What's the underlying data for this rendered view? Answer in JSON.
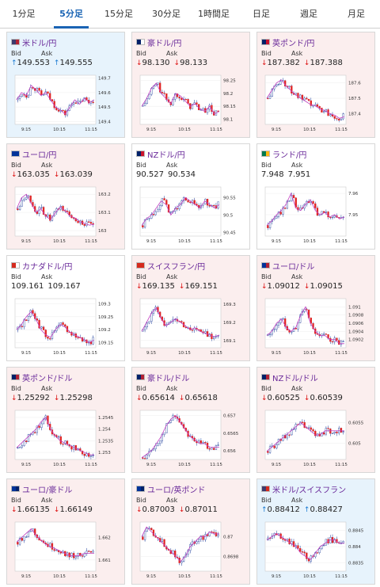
{
  "tabs": [
    {
      "label": "1分足",
      "active": false
    },
    {
      "label": "5分足",
      "active": true
    },
    {
      "label": "15分足",
      "active": false
    },
    {
      "label": "30分足",
      "active": false
    },
    {
      "label": "1時間足",
      "active": false
    },
    {
      "label": "日足",
      "active": false
    },
    {
      "label": "週足",
      "active": false
    },
    {
      "label": "月足",
      "active": false
    }
  ],
  "colors": {
    "up_candle": "#ffffff",
    "down_candle": "#e02424",
    "up_outline": "#1a3a9a",
    "ma_line": "#c040c0",
    "accent": "#1a64b4"
  },
  "cards": [
    {
      "pair": "米ドル/円",
      "flag_a": "#3c3b6e",
      "flag_b": "#b22234",
      "bid_label": "Bid",
      "ask_label": "Ask",
      "bid": "149.553",
      "ask": "149.555",
      "dir": "up",
      "bg": "up",
      "chart_data": {
        "type": "candlestick",
        "yticks": [
          "149.7",
          "149.6",
          "149.5",
          "149.4"
        ],
        "xticks": [
          "9:15",
          "10:15",
          "11:15"
        ],
        "ylim": [
          149.38,
          149.72
        ],
        "trend": [
          149.55,
          149.6,
          149.58,
          149.65,
          149.62,
          149.58,
          149.6,
          149.55,
          149.5,
          149.48,
          149.45,
          149.5,
          149.55,
          149.52,
          149.56,
          149.53,
          149.55
        ]
      }
    },
    {
      "pair": "豪ドル/円",
      "flag_a": "#012169",
      "flag_b": "#ffffff",
      "bid_label": "Bid",
      "ask_label": "Ask",
      "bid": "98.130",
      "ask": "98.133",
      "dir": "down",
      "bg": "down",
      "chart_data": {
        "type": "candlestick",
        "yticks": [
          "98.25",
          "98.2",
          "98.15",
          "98.1"
        ],
        "xticks": [
          "9:15",
          "10:15",
          "11:15"
        ],
        "ylim": [
          98.08,
          98.27
        ],
        "trend": [
          98.15,
          98.18,
          98.22,
          98.24,
          98.2,
          98.18,
          98.16,
          98.2,
          98.19,
          98.17,
          98.15,
          98.16,
          98.14,
          98.13,
          98.15,
          98.12,
          98.13
        ]
      }
    },
    {
      "pair": "英ポンド/円",
      "flag_a": "#012169",
      "flag_b": "#c8102e",
      "bid_label": "Bid",
      "ask_label": "Ask",
      "bid": "187.382",
      "ask": "187.388",
      "dir": "down",
      "bg": "down",
      "chart_data": {
        "type": "candlestick",
        "yticks": [
          "187.6",
          "187.5",
          "187.4"
        ],
        "xticks": [
          "9:15",
          "10:15",
          "11:15"
        ],
        "ylim": [
          187.33,
          187.65
        ],
        "trend": [
          187.5,
          187.55,
          187.6,
          187.62,
          187.58,
          187.55,
          187.52,
          187.5,
          187.48,
          187.46,
          187.45,
          187.43,
          187.42,
          187.4,
          187.39,
          187.37,
          187.38
        ]
      }
    },
    {
      "pair": "ユーロ/円",
      "flag_a": "#003399",
      "flag_b": "#003399",
      "bid_label": "Bid",
      "ask_label": "Ask",
      "bid": "163.035",
      "ask": "163.039",
      "dir": "down",
      "bg": "down",
      "chart_data": {
        "type": "candlestick",
        "yticks": [
          "163.2",
          "163.1",
          "163"
        ],
        "xticks": [
          "9:15",
          "10:15",
          "11:15"
        ],
        "ylim": [
          162.97,
          163.24
        ],
        "trend": [
          163.12,
          163.18,
          163.2,
          163.15,
          163.1,
          163.12,
          163.08,
          163.06,
          163.1,
          163.13,
          163.11,
          163.08,
          163.07,
          163.05,
          163.04,
          163.03,
          163.035
        ]
      }
    },
    {
      "pair": "NZドル/円",
      "flag_a": "#012169",
      "flag_b": "#cc142b",
      "bid_label": "Bid",
      "ask_label": "Ask",
      "bid": "90.527",
      "ask": "90.534",
      "dir": "none",
      "bg": "flat",
      "chart_data": {
        "type": "candlestick",
        "yticks": [
          "90.55",
          "90.5",
          "90.45"
        ],
        "xticks": [
          "9:15",
          "10:15",
          "11:15"
        ],
        "ylim": [
          90.44,
          90.58
        ],
        "trend": [
          90.47,
          90.49,
          90.5,
          90.52,
          90.54,
          90.53,
          90.5,
          90.52,
          90.53,
          90.55,
          90.54,
          90.53,
          90.52,
          90.54,
          90.53,
          90.52,
          90.53
        ]
      }
    },
    {
      "pair": "ランド/円",
      "flag_a": "#007a4d",
      "flag_b": "#ffb612",
      "bid_label": "Bid",
      "ask_label": "Ask",
      "bid": "7.948",
      "ask": "7.951",
      "dir": "none",
      "bg": "flat",
      "chart_data": {
        "type": "candlestick",
        "yticks": [
          "7.96",
          "7.95"
        ],
        "xticks": [
          "9:15",
          "10:15",
          "11:15"
        ],
        "ylim": [
          7.94,
          7.963
        ],
        "trend": [
          7.945,
          7.947,
          7.95,
          7.952,
          7.955,
          7.96,
          7.953,
          7.952,
          7.955,
          7.957,
          7.952,
          7.95,
          7.951,
          7.949,
          7.95,
          7.948,
          7.949
        ]
      }
    },
    {
      "pair": "カナダドル/円",
      "flag_a": "#d52b1e",
      "flag_b": "#ffffff",
      "bid_label": "Bid",
      "ask_label": "Ask",
      "bid": "109.161",
      "ask": "109.167",
      "dir": "none",
      "bg": "flat",
      "chart_data": {
        "type": "candlestick",
        "yticks": [
          "109.3",
          "109.25",
          "109.2",
          "109.15"
        ],
        "xticks": [
          "9:15",
          "10:15",
          "11:15"
        ],
        "ylim": [
          109.13,
          109.32
        ],
        "trend": [
          109.2,
          109.22,
          109.25,
          109.27,
          109.24,
          109.2,
          109.18,
          109.17,
          109.2,
          109.22,
          109.21,
          109.19,
          109.18,
          109.17,
          109.16,
          109.15,
          109.16
        ]
      }
    },
    {
      "pair": "スイスフラン/円",
      "flag_a": "#d52b1e",
      "flag_b": "#d52b1e",
      "bid_label": "Bid",
      "ask_label": "Ask",
      "bid": "169.135",
      "ask": "169.151",
      "dir": "down",
      "bg": "down",
      "chart_data": {
        "type": "candlestick",
        "yticks": [
          "169.3",
          "169.2",
          "169.1"
        ],
        "xticks": [
          "9:15",
          "10:15",
          "11:15"
        ],
        "ylim": [
          169.06,
          169.33
        ],
        "trend": [
          169.15,
          169.2,
          169.25,
          169.28,
          169.22,
          169.18,
          169.2,
          169.22,
          169.2,
          169.18,
          169.16,
          169.17,
          169.15,
          169.14,
          169.13,
          169.12,
          169.13
        ]
      }
    },
    {
      "pair": "ユーロ/ドル",
      "flag_a": "#003399",
      "flag_b": "#b22234",
      "bid_label": "Bid",
      "ask_label": "Ask",
      "bid": "1.09012",
      "ask": "1.09015",
      "dir": "down",
      "bg": "down",
      "chart_data": {
        "type": "candlestick",
        "yticks": [
          "1.091",
          "1.0908",
          "1.0906",
          "1.0904",
          "1.0902"
        ],
        "xticks": [
          "9:15",
          "10:15",
          "11:15"
        ],
        "ylim": [
          1.09,
          1.0912
        ],
        "trend": [
          1.0903,
          1.0904,
          1.0906,
          1.0907,
          1.0905,
          1.0904,
          1.0905,
          1.0908,
          1.091,
          1.0906,
          1.0904,
          1.0903,
          1.0903,
          1.0902,
          1.0902,
          1.0901,
          1.0901
        ]
      }
    },
    {
      "pair": "英ポンド/ドル",
      "flag_a": "#012169",
      "flag_b": "#b22234",
      "bid_label": "Bid",
      "ask_label": "Ask",
      "bid": "1.25292",
      "ask": "1.25298",
      "dir": "down",
      "bg": "down",
      "chart_data": {
        "type": "candlestick",
        "yticks": [
          "1.2545",
          "1.254",
          "1.2535",
          "1.253"
        ],
        "xticks": [
          "9:15",
          "10:15",
          "11:15"
        ],
        "ylim": [
          1.2527,
          1.2548
        ],
        "trend": [
          1.2532,
          1.2534,
          1.2536,
          1.2538,
          1.254,
          1.2543,
          1.2545,
          1.254,
          1.2537,
          1.2535,
          1.2534,
          1.2533,
          1.2532,
          1.2531,
          1.253,
          1.2529,
          1.2529
        ]
      }
    },
    {
      "pair": "豪ドル/ドル",
      "flag_a": "#012169",
      "flag_b": "#b22234",
      "bid_label": "Bid",
      "ask_label": "Ask",
      "bid": "0.65614",
      "ask": "0.65618",
      "dir": "down",
      "bg": "down",
      "chart_data": {
        "type": "candlestick",
        "yticks": [
          "0.657",
          "0.6565",
          "0.656"
        ],
        "xticks": [
          "9:15",
          "10:15",
          "11:15"
        ],
        "ylim": [
          0.65575,
          0.65715
        ],
        "trend": [
          0.6558,
          0.6559,
          0.656,
          0.6562,
          0.6564,
          0.6567,
          0.6569,
          0.657,
          0.6568,
          0.6566,
          0.6564,
          0.6563,
          0.6562,
          0.6562,
          0.6561,
          0.6561,
          0.6561
        ]
      }
    },
    {
      "pair": "NZドル/ドル",
      "flag_a": "#012169",
      "flag_b": "#b22234",
      "bid_label": "Bid",
      "ask_label": "Ask",
      "bid": "0.60525",
      "ask": "0.60539",
      "dir": "down",
      "bg": "down",
      "chart_data": {
        "type": "candlestick",
        "yticks": [
          "0.6055",
          "0.605"
        ],
        "xticks": [
          "9:15",
          "10:15",
          "11:15"
        ],
        "ylim": [
          0.6046,
          0.6058
        ],
        "trend": [
          0.6048,
          0.6049,
          0.605,
          0.6051,
          0.6052,
          0.6053,
          0.6054,
          0.6055,
          0.6054,
          0.6053,
          0.6052,
          0.6052,
          0.6053,
          0.6053,
          0.6053,
          0.6053,
          0.6053
        ]
      }
    },
    {
      "pair": "ユーロ/豪ドル",
      "flag_a": "#003399",
      "flag_b": "#012169",
      "bid_label": "Bid",
      "ask_label": "Ask",
      "bid": "1.66135",
      "ask": "1.66149",
      "dir": "down",
      "bg": "down",
      "chart_data": {
        "type": "candlestick",
        "yticks": [
          "1.662",
          "1.661"
        ],
        "xticks": [
          "9:15",
          "10:15",
          "11:15"
        ],
        "ylim": [
          1.6605,
          1.6627
        ],
        "trend": [
          1.6618,
          1.662,
          1.6622,
          1.6624,
          1.6621,
          1.6619,
          1.6617,
          1.6616,
          1.6615,
          1.6614,
          1.6613,
          1.6612,
          1.6612,
          1.6612,
          1.6613,
          1.6613,
          1.6613
        ]
      }
    },
    {
      "pair": "ユーロ/英ポンド",
      "flag_a": "#003399",
      "flag_b": "#012169",
      "bid_label": "Bid",
      "ask_label": "Ask",
      "bid": "0.87003",
      "ask": "0.87011",
      "dir": "down",
      "bg": "down",
      "chart_data": {
        "type": "candlestick",
        "yticks": [
          "0.87",
          "0.8698"
        ],
        "xticks": [
          "9:15",
          "10:15",
          "11:15"
        ],
        "ylim": [
          0.86965,
          0.87015
        ],
        "trend": [
          0.87,
          0.8701,
          0.87005,
          0.87,
          0.86995,
          0.8699,
          0.86985,
          0.8698,
          0.86975,
          0.8698,
          0.8699,
          0.86995,
          0.87,
          0.87,
          0.87005,
          0.87003,
          0.87003
        ]
      }
    },
    {
      "pair": "米ドル/スイスフラン",
      "flag_a": "#3c3b6e",
      "flag_b": "#d52b1e",
      "bid_label": "Bid",
      "ask_label": "Ask",
      "bid": "0.88412",
      "ask": "0.88427",
      "dir": "up",
      "bg": "up",
      "chart_data": {
        "type": "candlestick",
        "yticks": [
          "0.8845",
          "0.884",
          "0.8835"
        ],
        "xticks": [
          "9:15",
          "10:15",
          "11:15"
        ],
        "ylim": [
          0.88325,
          0.88475
        ],
        "trend": [
          0.8842,
          0.8843,
          0.8844,
          0.8843,
          0.8842,
          0.8841,
          0.884,
          0.8838,
          0.8837,
          0.8836,
          0.8838,
          0.884,
          0.8841,
          0.8842,
          0.8842,
          0.8841,
          0.8841
        ]
      }
    }
  ]
}
